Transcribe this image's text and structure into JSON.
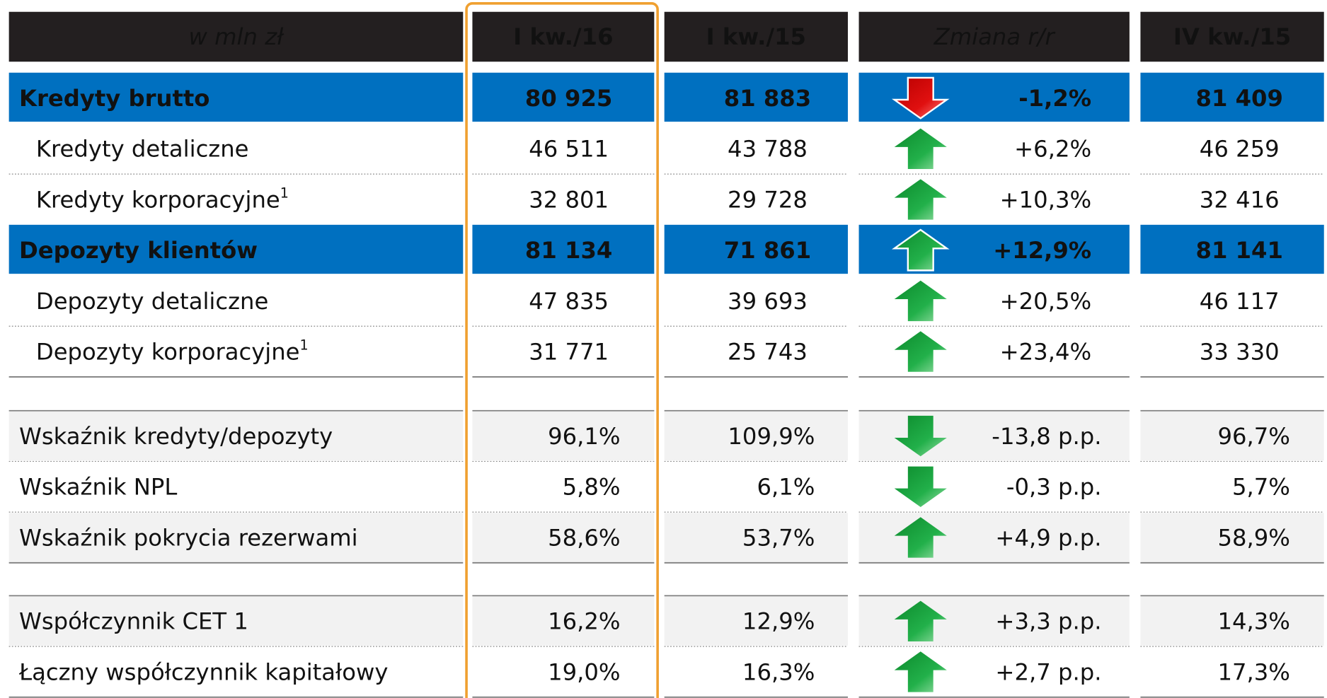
{
  "header": [
    "w mln zł",
    "I kw./16",
    "I kw./15",
    "Zmiana r/r",
    "IV kw./15"
  ],
  "groups": [
    [
      {
        "label": "Kredyty brutto",
        "bold": true,
        "values": [
          "80 925",
          "81 883",
          "81 409"
        ],
        "change": "-1,2%"
      },
      {
        "label": "Kredyty detaliczne",
        "values": [
          "46 511",
          "43 788",
          "46 259"
        ],
        "change": "+6,2%"
      },
      {
        "label": "Kredyty korporacyjne",
        "note": "1",
        "values": [
          "32 801",
          "29 728",
          "32 416"
        ],
        "change": "+10,3%"
      },
      {
        "label": "Depozyty klientów",
        "bold": true,
        "values": [
          "81 134",
          "71 861",
          "81 141"
        ],
        "change": "+12,9%"
      },
      {
        "label": "Depozyty detaliczne",
        "values": [
          "47 835",
          "39 693",
          "46 117"
        ],
        "change": "+20,5%"
      },
      {
        "label": "Depozyty korporacyjne",
        "note": "1",
        "values": [
          "31 771",
          "25 743",
          "33 330"
        ],
        "change": "+23,4%"
      }
    ],
    [
      {
        "label": "Wskaźnik kredyty/depozyty",
        "values": [
          "96,1%",
          "109,9%",
          "96,7%"
        ],
        "change": "-13,8 p.p."
      },
      {
        "label": "Wskaźnik NPL",
        "values": [
          "5,8%",
          "6,1%",
          "5,7%"
        ],
        "change": "-0,3 p.p."
      },
      {
        "label": "Wskaźnik pokrycia rezerwami",
        "values": [
          "58,6%",
          "53,7%",
          "58,9%"
        ],
        "change": "+4,9 p.p."
      }
    ],
    [
      {
        "label": "Współczynnik CET 1",
        "values": [
          "16,2%",
          "12,9%",
          "14,3%"
        ],
        "change": "+3,3 p.p."
      },
      {
        "label": "Łączny współczynnik kapitałowy",
        "values": [
          "19,0%",
          "16,3%",
          "17,3%"
        ],
        "change": "+2,7 p.p."
      }
    ]
  ]
}
